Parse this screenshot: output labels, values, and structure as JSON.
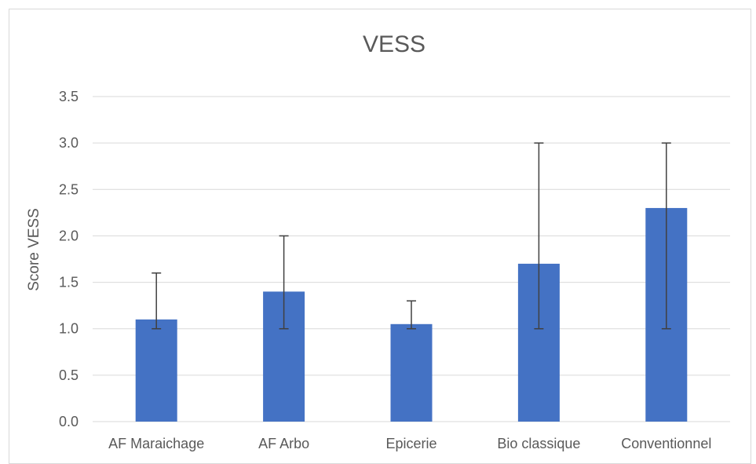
{
  "chart_data": {
    "type": "bar",
    "title": "VESS",
    "xlabel": "",
    "ylabel": "Score VESS",
    "categories": [
      "AF Maraichage",
      "AF Arbo",
      "Epicerie",
      "Bio classique",
      "Conventionnel"
    ],
    "values": [
      1.1,
      1.4,
      1.05,
      1.7,
      2.3
    ],
    "error_low": [
      1.0,
      1.0,
      1.0,
      1.0,
      1.0
    ],
    "error_high": [
      1.6,
      2.0,
      1.3,
      3.0,
      3.0
    ],
    "ylim": [
      0,
      3.5
    ],
    "yticks": [
      "0.0",
      "0.5",
      "1.0",
      "1.5",
      "2.0",
      "2.5",
      "3.0",
      "3.5"
    ],
    "grid": true,
    "legend": "none",
    "colors": {
      "bar": "#4472c4",
      "grid": "#d9d9d9",
      "error": "#404040"
    }
  }
}
